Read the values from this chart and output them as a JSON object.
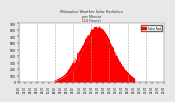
{
  "title": "Milwaukee Weather Solar Radiation per Minute (24 Hours)",
  "bg_color": "#e8e8e8",
  "plot_bg_color": "#ffffff",
  "fill_color": "#ff0000",
  "line_color": "#ff0000",
  "grid_color": "#aaaaaa",
  "legend_color": "#ff0000",
  "xlim": [
    0,
    1440
  ],
  "ylim": [
    0,
    900
  ],
  "num_points": 1440,
  "peak_minute": 780,
  "peak_value": 820,
  "start_minute": 360,
  "end_minute": 1150
}
